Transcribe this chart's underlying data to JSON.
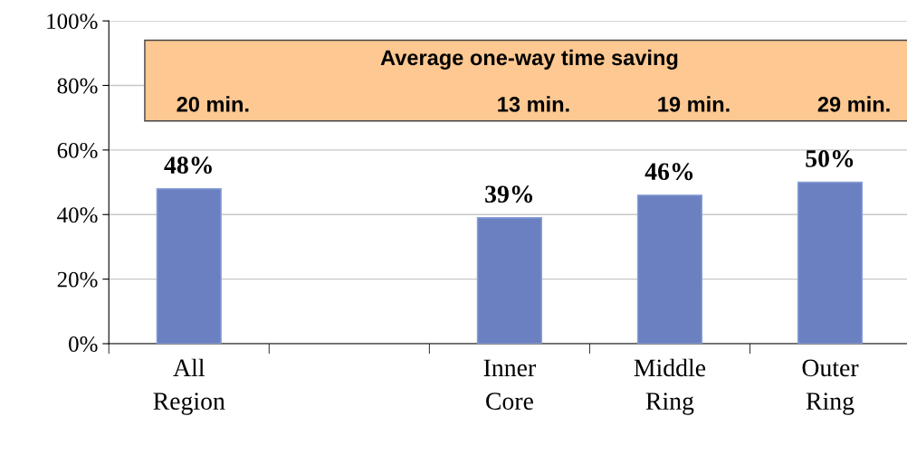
{
  "chart_data": {
    "type": "bar",
    "categories": [
      "All\nRegion",
      null,
      "Inner\nCore",
      "Middle\nRing",
      "Outer\nRing"
    ],
    "values": [
      48,
      null,
      39,
      46,
      50
    ],
    "value_labels": [
      "48%",
      null,
      "39%",
      "46%",
      "50%"
    ],
    "color": "#6b80c0",
    "ylim": [
      0,
      100
    ],
    "yticks": [
      {
        "value": 0,
        "label": "0%"
      },
      {
        "value": 20,
        "label": "20%"
      },
      {
        "value": 40,
        "label": "40%"
      },
      {
        "value": 60,
        "label": "60%"
      },
      {
        "value": 80,
        "label": "80%"
      },
      {
        "value": 100,
        "label": "100%"
      }
    ],
    "grid": "y",
    "annotations": [
      "Average one-way time saving",
      "20 min.",
      "13 min.",
      "19 min.",
      "29 min."
    ]
  }
}
